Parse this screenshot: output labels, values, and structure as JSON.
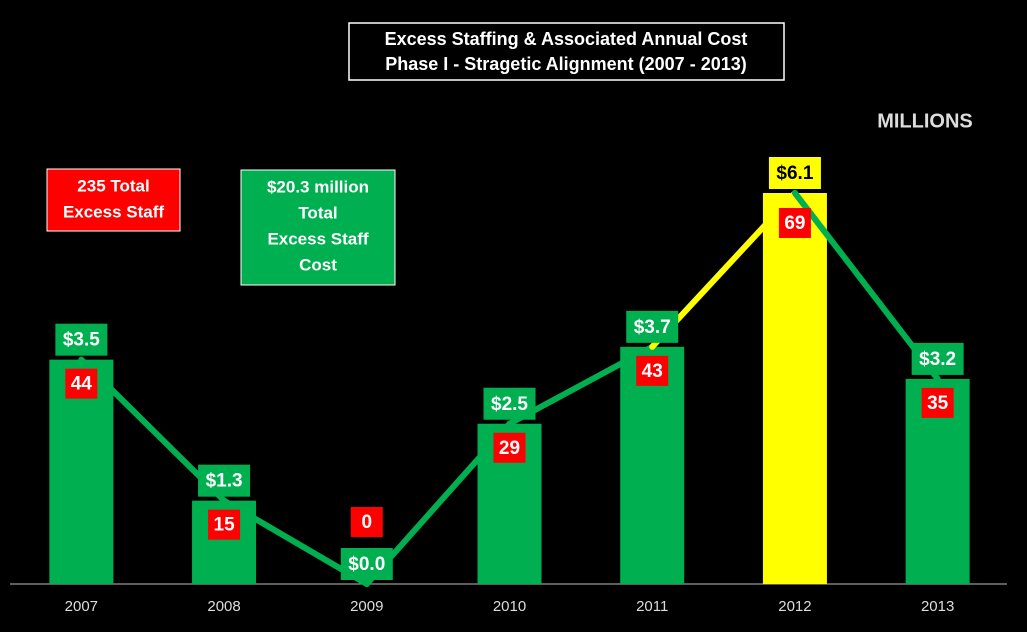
{
  "chart_data": {
    "type": "bar",
    "title": [
      "Excess Staffing & Associated Annual Cost",
      "Phase I - Stragetic Alignment (2007 - 2013)"
    ],
    "unit_label": "MILLIONS",
    "categories": [
      "2007",
      "2008",
      "2009",
      "2010",
      "2011",
      "2012",
      "2013"
    ],
    "values": [
      3.5,
      1.3,
      0.0,
      2.5,
      3.7,
      6.1,
      3.2
    ],
    "value_labels": [
      "$3.5",
      "$1.3",
      "$0.0",
      "$2.5",
      "$3.7",
      "$6.1",
      "$3.2"
    ],
    "colors": [
      "#00b050",
      "#00b050",
      "#00b050",
      "#00b050",
      "#00b050",
      "#ffff00",
      "#00b050"
    ],
    "excess_staff": [
      44,
      15,
      0,
      29,
      43,
      69,
      35
    ],
    "annotations": [
      {
        "lines": [
          "235 Total",
          "Excess Staff"
        ],
        "color": "#ff0000"
      },
      {
        "lines": [
          "$20.3 million",
          "Total",
          "Excess Staff",
          "Cost"
        ],
        "color": "#00b050"
      }
    ]
  }
}
